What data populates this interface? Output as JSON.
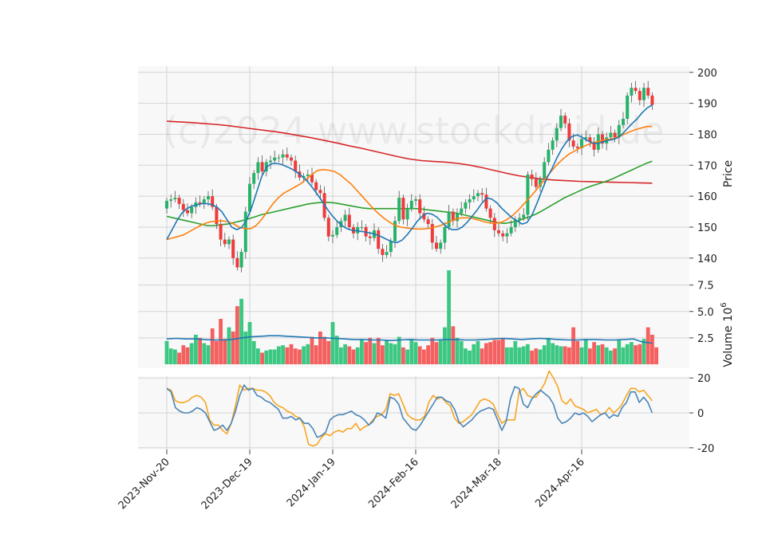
{
  "chart_data": {
    "type": "candlestick",
    "watermark": "(c)2024 www.stockdroid.de",
    "x_tick_labels": [
      "2023-Nov-20",
      "2023-Dec-19",
      "2024-Jan-19",
      "2024-Feb-16",
      "2024-Mar-18",
      "2024-Apr-16"
    ],
    "x_tick_index": [
      0,
      20,
      40,
      60,
      80,
      100
    ],
    "colors": {
      "up": "#26b36a",
      "down": "#ef3b3b",
      "up_volume": "#3cc882",
      "down_volume": "#f46060",
      "ma_blue": "#1f77b4",
      "ma_orange": "#ff7f0e",
      "ma_green": "#2ca02c",
      "ma_red": "#d62728",
      "osc_blue": "#4a86b8",
      "osc_orange": "#f5a623"
    },
    "price_panel": {
      "ylabel": "Price",
      "yticks": [
        140,
        150,
        160,
        170,
        180,
        190,
        200
      ],
      "ylim": [
        133,
        202
      ],
      "close": [
        158.5,
        159.0,
        159.5,
        157.5,
        155.5,
        154.5,
        156.5,
        158.0,
        157.5,
        159.0,
        160.0,
        156.5,
        151.0,
        146.0,
        144.5,
        146.0,
        140.0,
        137.0,
        142.0,
        155.0,
        164.0,
        167.5,
        171.0,
        168.0,
        171.0,
        171.5,
        172.5,
        172.5,
        173.5,
        172.5,
        171.5,
        168.0,
        166.0,
        166.5,
        167.0,
        164.5,
        162.0,
        161.0,
        153.0,
        147.0,
        147.5,
        150.0,
        152.0,
        154.0,
        150.0,
        148.0,
        150.0,
        150.0,
        147.0,
        146.5,
        149.0,
        143.0,
        141.0,
        142.0,
        145.5,
        152.0,
        159.5,
        152.5,
        156.0,
        158.5,
        159.0,
        154.5,
        152.5,
        151.0,
        145.0,
        143.0,
        145.0,
        150.0,
        155.0,
        152.0,
        154.5,
        156.0,
        158.0,
        159.0,
        160.0,
        161.0,
        160.5,
        156.0,
        153.0,
        149.0,
        148.0,
        147.0,
        148.0,
        150.0,
        152.5,
        153.0,
        154.0,
        167.0,
        165.5,
        163.0,
        165.5,
        171.0,
        175.0,
        178.0,
        182.0,
        186.0,
        183.5,
        178.0,
        176.0,
        175.5,
        178.5,
        179.0,
        177.5,
        175.0,
        180.0,
        177.0,
        179.0,
        180.5,
        179.0,
        183.0,
        185.0,
        192.5,
        195.0,
        194.0,
        191.0,
        195.0,
        192.5,
        189.5
      ],
      "ma_blue": [
        146.0,
        149.0,
        152.0,
        154.5,
        156.0,
        156.8,
        157.2,
        157.6,
        157.6,
        157.3,
        156.5,
        155.0,
        152.5,
        150.0,
        149.2,
        150.0,
        152.5,
        156.5,
        161.5,
        166.5,
        169.5,
        170.5,
        170.6,
        170.2,
        169.5,
        168.8,
        167.7,
        166.5,
        165.0,
        163.0,
        160.8,
        158.5,
        156.0,
        153.8,
        152.0,
        150.5,
        149.5,
        149.0,
        148.8,
        148.6,
        148.3,
        148.0,
        147.5,
        146.8,
        146.0,
        145.3,
        145.0,
        145.8,
        147.5,
        149.5,
        151.8,
        153.5,
        154.5,
        154.2,
        153.2,
        151.5,
        150.0,
        149.2,
        149.2,
        150.0,
        151.5,
        153.5,
        155.5,
        157.8,
        159.5,
        159.0,
        157.8,
        156.0,
        154.5,
        153.0,
        152.0,
        151.0,
        151.5,
        154.0,
        157.8,
        162.0,
        166.0,
        169.0,
        172.5,
        175.5,
        177.8,
        179.3,
        179.8,
        179.0,
        178.0,
        177.2,
        177.0,
        177.5,
        178.0,
        178.3,
        178.8,
        180.0,
        181.8,
        183.5,
        185.0,
        187.0,
        188.5,
        189.5
      ],
      "ma_orange": [
        146.0,
        146.5,
        147.0,
        147.5,
        148.5,
        149.5,
        150.5,
        151.3,
        151.8,
        152.0,
        152.0,
        151.8,
        151.0,
        150.0,
        149.5,
        149.5,
        150.5,
        152.5,
        155.0,
        157.5,
        159.5,
        161.0,
        162.0,
        163.0,
        164.0,
        165.5,
        167.0,
        168.3,
        168.6,
        168.4,
        168.0,
        167.0,
        165.5,
        164.0,
        162.0,
        160.0,
        158.0,
        156.0,
        154.3,
        152.8,
        151.5,
        150.5,
        150.0,
        149.7,
        149.5,
        149.4,
        149.4,
        149.6,
        150.0,
        150.5,
        151.2,
        152.0,
        152.8,
        153.0,
        153.0,
        152.7,
        152.2,
        151.7,
        151.3,
        151.3,
        151.6,
        152.5,
        153.8,
        155.5,
        157.5,
        159.5,
        161.5,
        163.8,
        166.0,
        168.2,
        170.3,
        172.0,
        173.5,
        174.5,
        175.5,
        176.3,
        177.0,
        177.5,
        178.0,
        178.3,
        178.6,
        179.3,
        180.0,
        180.8,
        181.5,
        182.0,
        182.5,
        182.5
      ],
      "ma_green": [
        153.5,
        153.0,
        152.5,
        152.0,
        151.5,
        151.0,
        150.5,
        150.5,
        150.8,
        151.0,
        151.5,
        152.0,
        152.6,
        153.3,
        154.0,
        154.5,
        155.0,
        155.5,
        156.0,
        156.5,
        157.0,
        157.5,
        157.8,
        158.0,
        158.0,
        157.8,
        157.4,
        157.0,
        156.6,
        156.2,
        156.0,
        156.0,
        156.0,
        156.0,
        156.0,
        156.0,
        156.0,
        156.0,
        155.8,
        155.5,
        155.3,
        155.0,
        154.8,
        154.5,
        154.0,
        153.5,
        153.0,
        152.5,
        152.0,
        151.5,
        151.2,
        151.5,
        152.0,
        152.8,
        153.5,
        154.5,
        155.7,
        157.0,
        158.2,
        159.5,
        160.5,
        161.5,
        162.5,
        163.3,
        164.0,
        164.7,
        165.5,
        166.5,
        167.5,
        168.5,
        169.5,
        170.5,
        171.3
      ],
      "ma_red": [
        184.2,
        184.0,
        183.8,
        183.5,
        183.2,
        182.8,
        182.3,
        181.8,
        181.3,
        180.8,
        180.2,
        179.5,
        178.8,
        178.0,
        177.2,
        176.3,
        175.5,
        174.6,
        173.7,
        172.8,
        172.0,
        171.5,
        171.2,
        171.0,
        170.6,
        170.0,
        169.2,
        168.3,
        167.4,
        166.6,
        166.0,
        165.5,
        165.2,
        165.0,
        164.8,
        164.7,
        164.6,
        164.5,
        164.4,
        164.3,
        164.2
      ],
      "ma_green_start": 0,
      "ma_red_start": 0
    },
    "volume_panel": {
      "ylabel": "Volume",
      "scale_label": "10",
      "scale_exp": "6",
      "yticks": [
        2.5,
        5.0,
        7.5
      ],
      "ytick_labels": [
        "2.5",
        "5.0",
        "7.5"
      ],
      "ylim": [
        0,
        8
      ],
      "values": [
        2.2,
        1.5,
        1.4,
        1.1,
        1.8,
        1.6,
        2.0,
        2.8,
        2.5,
        2.0,
        1.8,
        3.4,
        2.2,
        4.3,
        2.4,
        3.5,
        3.1,
        5.5,
        6.2,
        3.1,
        4.0,
        2.2,
        1.5,
        1.1,
        1.3,
        1.4,
        1.4,
        1.7,
        1.8,
        1.6,
        1.9,
        1.5,
        1.4,
        1.7,
        1.9,
        2.6,
        1.8,
        3.1,
        2.6,
        2.2,
        4.0,
        2.7,
        1.6,
        1.9,
        1.7,
        1.4,
        1.6,
        2.3,
        2.1,
        2.5,
        2.0,
        2.5,
        1.8,
        2.3,
        2.0,
        1.9,
        2.6,
        1.6,
        1.4,
        2.4,
        2.1,
        1.7,
        1.4,
        1.8,
        2.5,
        2.1,
        2.3,
        3.5,
        8.9,
        3.6,
        2.5,
        2.2,
        1.5,
        1.3,
        1.9,
        2.2,
        1.5,
        2.0,
        2.1,
        2.3,
        2.3,
        2.4,
        1.6,
        1.6,
        2.2,
        1.6,
        1.7,
        1.9,
        1.3,
        1.5,
        1.4,
        1.8,
        2.5,
        2.0,
        1.8,
        1.7,
        1.7,
        1.6,
        3.5,
        2.2,
        1.6,
        2.4,
        1.5,
        2.1,
        1.8,
        1.9,
        1.6,
        1.3,
        1.5,
        2.3,
        1.6,
        1.9,
        2.1,
        1.8,
        1.9,
        2.4,
        3.5,
        2.8,
        1.6
      ],
      "avg": [
        2.4,
        2.45,
        2.4,
        2.4,
        2.35,
        2.3,
        2.3,
        2.35,
        2.5,
        2.6,
        2.65,
        2.7,
        2.7,
        2.65,
        2.6,
        2.55,
        2.5,
        2.5,
        2.45,
        2.4,
        2.35,
        2.35,
        2.3,
        2.3,
        2.25,
        2.3,
        2.35,
        2.3,
        2.3,
        2.3,
        2.35,
        2.35,
        2.3,
        2.3,
        2.35,
        2.4,
        2.45,
        2.4,
        2.35,
        2.4,
        2.45,
        2.4,
        2.35,
        2.3,
        2.3,
        2.35,
        2.35,
        2.3,
        2.3,
        2.35,
        2.4,
        2.1,
        2.0
      ]
    },
    "oscillator_panel": {
      "yticks": [
        -20,
        0,
        20
      ],
      "ylim": [
        -21,
        21
      ],
      "blue": [
        14,
        12,
        3,
        1,
        0,
        0,
        1,
        3,
        2,
        0,
        -5,
        -10,
        -9,
        -7,
        -10,
        -6,
        1,
        10,
        16,
        13,
        14,
        10,
        9,
        7,
        6,
        4,
        2,
        -3,
        -3,
        -2,
        -4,
        -3,
        -6,
        -6,
        -9,
        -14,
        -13,
        -11,
        -4,
        -2,
        -1,
        -1,
        0,
        1,
        -1,
        -2,
        -4,
        -7,
        -5,
        0,
        -1,
        -3,
        9,
        8,
        5,
        -3,
        -6,
        -9,
        -10,
        -7,
        -3,
        1,
        5,
        9,
        9,
        7,
        6,
        2,
        -5,
        -8,
        -6,
        -4,
        -1,
        1,
        2,
        3,
        2,
        -4,
        -10,
        -5,
        8,
        15,
        14,
        5,
        3,
        8,
        11,
        13,
        11,
        9,
        5,
        -3,
        -6,
        -5,
        -3,
        0,
        -1,
        0,
        -2,
        -5,
        -3,
        -1,
        0,
        -3,
        -1,
        -2,
        3,
        6,
        12,
        12,
        6,
        9,
        6,
        0
      ],
      "orange": [
        14,
        13,
        7,
        6,
        6,
        7,
        9,
        10,
        9,
        6,
        -4,
        -7,
        -7,
        -10,
        -12,
        -6,
        4,
        16,
        13,
        14,
        14,
        13,
        13,
        12,
        10,
        6,
        4,
        3,
        1,
        0,
        -2,
        -3,
        -8,
        -18,
        -19,
        -18,
        -14,
        -12,
        -13,
        -11,
        -10,
        -11,
        -9,
        -9,
        -6,
        -10,
        -8,
        -7,
        -4,
        -2,
        -1,
        2,
        11,
        10,
        11,
        5,
        -1,
        -3,
        -4,
        -4,
        -2,
        6,
        10,
        8,
        9,
        6,
        4,
        -3,
        -6,
        -5,
        -3,
        -1,
        3,
        7,
        8,
        7,
        5,
        -1,
        -6,
        -4,
        -4,
        -4,
        12,
        14,
        10,
        9,
        9,
        13,
        17,
        24,
        20,
        15,
        7,
        5,
        8,
        4,
        3,
        2,
        0,
        1,
        2,
        -1,
        0,
        3,
        0,
        2,
        5,
        10,
        14,
        14,
        12,
        13,
        10,
        7
      ]
    }
  }
}
